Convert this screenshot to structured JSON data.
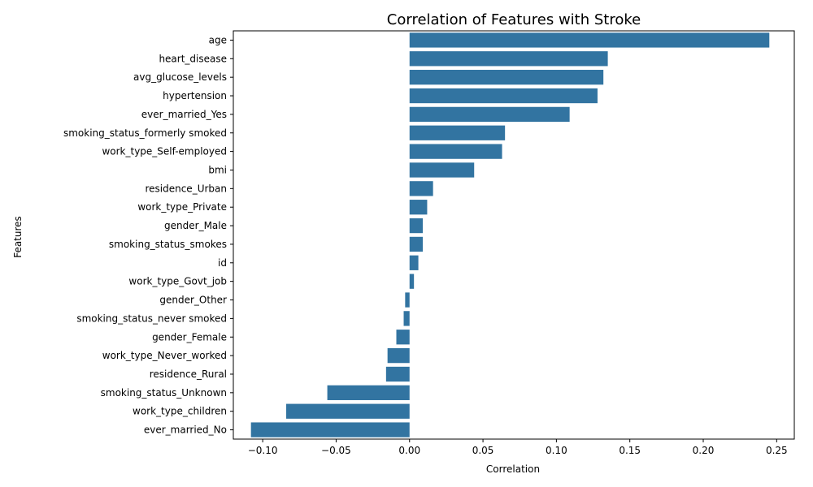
{
  "chart_data": {
    "type": "bar",
    "orientation": "horizontal",
    "title": "Correlation of Features with Stroke",
    "xlabel": "Correlation",
    "ylabel": "Features",
    "xlim": [
      -0.12,
      0.262
    ],
    "xticks": [
      -0.1,
      -0.05,
      0.0,
      0.05,
      0.1,
      0.15,
      0.2,
      0.25
    ],
    "xtick_labels": [
      "−0.10",
      "−0.05",
      "0.00",
      "0.05",
      "0.10",
      "0.15",
      "0.20",
      "0.25"
    ],
    "grid": false,
    "bar_color": "#3274a1",
    "categories": [
      "age",
      "heart_disease",
      "avg_glucose_levels",
      "hypertension",
      "ever_married_Yes",
      "smoking_status_formerly smoked",
      "work_type_Self-employed",
      "bmi",
      "residence_Urban",
      "work_type_Private",
      "gender_Male",
      "smoking_status_smokes",
      "id",
      "work_type_Govt_job",
      "gender_Other",
      "smoking_status_never smoked",
      "gender_Female",
      "work_type_Never_worked",
      "residence_Rural",
      "smoking_status_Unknown",
      "work_type_children",
      "ever_married_No"
    ],
    "values": [
      0.245,
      0.135,
      0.132,
      0.128,
      0.109,
      0.065,
      0.063,
      0.044,
      0.016,
      0.012,
      0.009,
      0.009,
      0.006,
      0.003,
      -0.003,
      -0.004,
      -0.009,
      -0.015,
      -0.016,
      -0.056,
      -0.084,
      -0.108
    ]
  }
}
